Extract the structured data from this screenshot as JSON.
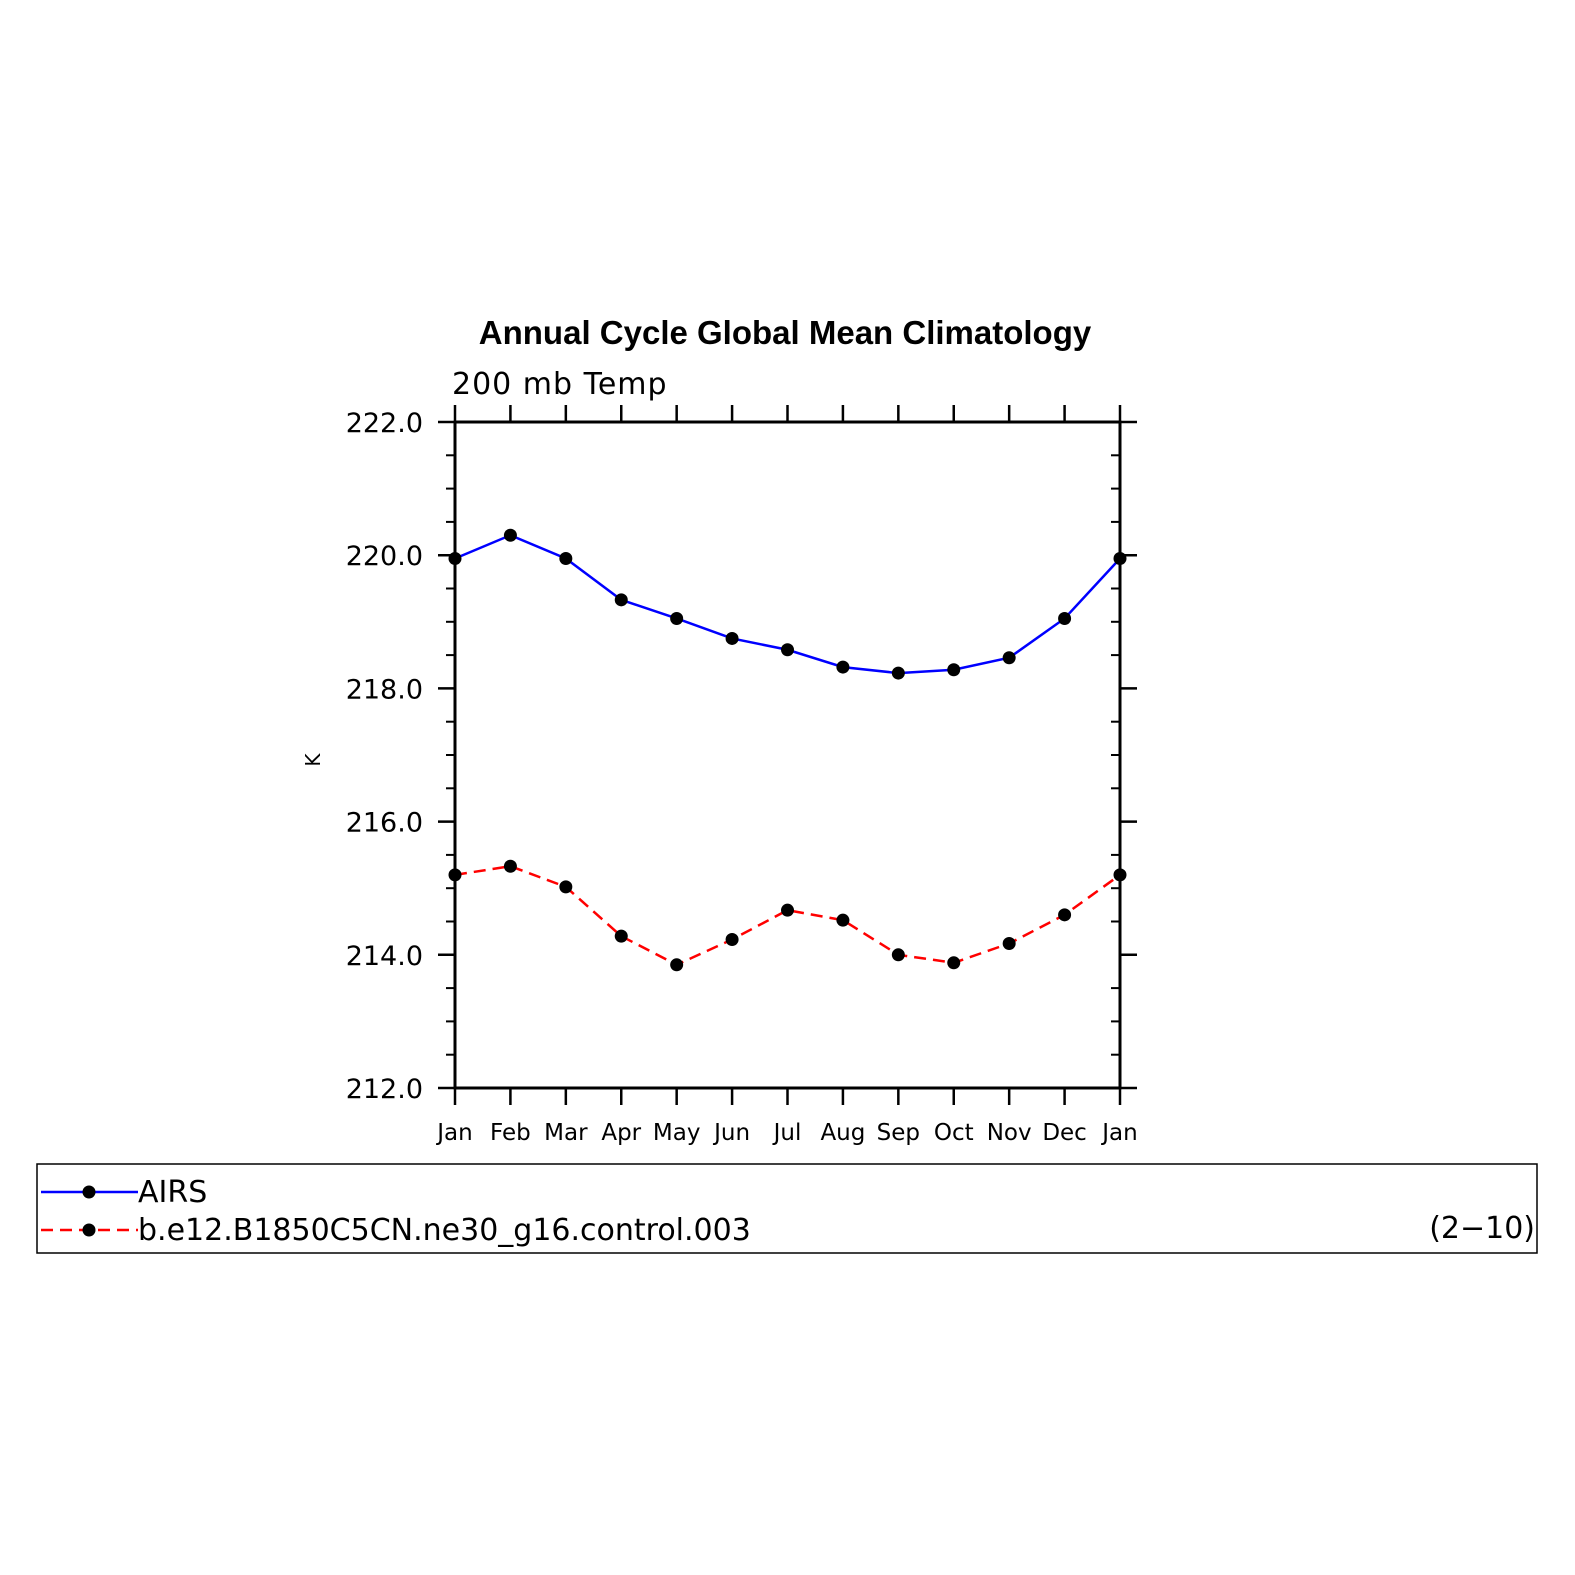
{
  "chart_data": {
    "type": "line",
    "title": "Annual Cycle Global Mean Climatology",
    "subtitle": "200 mb Temp",
    "ylabel": "K",
    "xlabel": "",
    "ylim": [
      212.0,
      222.0
    ],
    "yticks": [
      "212.0",
      "214.0",
      "216.0",
      "218.0",
      "220.0",
      "222.0"
    ],
    "categories": [
      "Jan",
      "Feb",
      "Mar",
      "Apr",
      "May",
      "Jun",
      "Jul",
      "Aug",
      "Sep",
      "Oct",
      "Nov",
      "Dec",
      "Jan"
    ],
    "series": [
      {
        "name": "AIRS",
        "color": "#0000ff",
        "style": "solid",
        "values": [
          219.95,
          220.3,
          219.95,
          219.33,
          219.05,
          218.75,
          218.58,
          218.32,
          218.23,
          218.28,
          218.46,
          219.05,
          219.95
        ]
      },
      {
        "name": "b.e12.B1850C5CN.ne30_g16.control.003",
        "color": "#ff0000",
        "style": "dashed",
        "values": [
          215.2,
          215.33,
          215.02,
          214.28,
          213.85,
          214.23,
          214.67,
          214.52,
          214.0,
          213.88,
          214.17,
          214.6,
          215.2
        ]
      }
    ],
    "legend_note": "(2−10)",
    "legend_position": "bottom"
  }
}
